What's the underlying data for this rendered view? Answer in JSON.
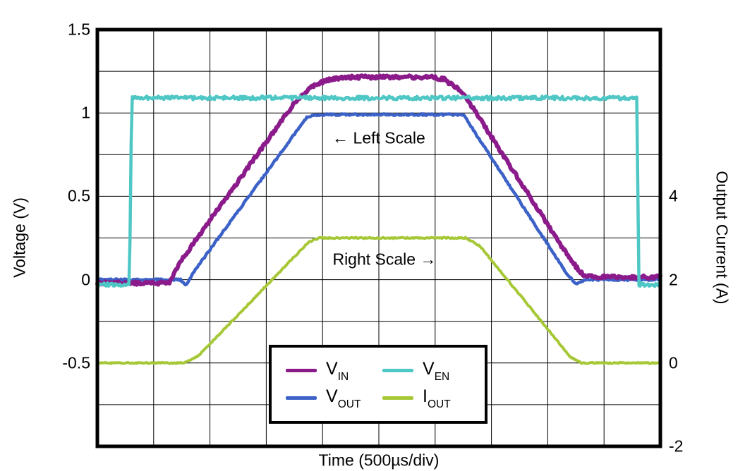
{
  "figure": {
    "background": "#ffffff"
  },
  "chart_data": {
    "type": "line",
    "title": "",
    "xlabel": "Time (500µs/div)",
    "x_divisions": 10,
    "grid": true,
    "left_axis": {
      "label": "Voltage (V)",
      "range": [
        -1.0,
        1.5
      ],
      "ticks": [
        {
          "value": 1.5,
          "label": "1.5"
        },
        {
          "value": 1.0,
          "label": "1"
        },
        {
          "value": 0.5,
          "label": "0.5"
        },
        {
          "value": 0.0,
          "label": "0"
        },
        {
          "value": -0.5,
          "label": "-0.5"
        }
      ]
    },
    "right_axis": {
      "label": "Output Current (A)",
      "range": [
        -2,
        8
      ],
      "ticks": [
        {
          "value": 4,
          "label": "4"
        },
        {
          "value": 2,
          "label": "2"
        },
        {
          "value": 0,
          "label": "0"
        },
        {
          "value": -2,
          "label": "-2"
        }
      ]
    },
    "series": [
      {
        "id": "iout",
        "label_main": "I",
        "label_sub": "OUT",
        "color": "#a6c836",
        "width": 4,
        "scale": "right",
        "noise": 0.015,
        "seed": 4,
        "points": [
          [
            0,
            0
          ],
          [
            1.55,
            0
          ],
          [
            1.8,
            0.18
          ],
          [
            3.75,
            2.9
          ],
          [
            3.95,
            3.0
          ],
          [
            6.55,
            3.0
          ],
          [
            6.8,
            2.8
          ],
          [
            8.4,
            0.15
          ],
          [
            8.6,
            0
          ],
          [
            10,
            0
          ]
        ]
      },
      {
        "id": "vout",
        "label_main": "V",
        "label_sub": "OUT",
        "color": "#3c62c8",
        "width": 4.5,
        "scale": "left",
        "noise": 0.005,
        "seed": 3,
        "points": [
          [
            0,
            0
          ],
          [
            1.48,
            0
          ],
          [
            1.57,
            -0.035
          ],
          [
            1.72,
            0.05
          ],
          [
            3.72,
            0.975
          ],
          [
            3.95,
            0.99
          ],
          [
            6.5,
            0.99
          ],
          [
            8.35,
            0.03
          ],
          [
            8.5,
            -0.025
          ],
          [
            8.7,
            0
          ],
          [
            10,
            0
          ]
        ]
      },
      {
        "id": "vin",
        "label_main": "V",
        "label_sub": "IN",
        "color": "#8b1b8b",
        "width": 6,
        "scale": "left",
        "noise": 0.01,
        "seed": 1,
        "points": [
          [
            0,
            -0.02
          ],
          [
            1.28,
            -0.02
          ],
          [
            1.5,
            0.12
          ],
          [
            3.5,
            1.06
          ],
          [
            3.8,
            1.155
          ],
          [
            4.1,
            1.2
          ],
          [
            4.4,
            1.215
          ],
          [
            5.9,
            1.215
          ],
          [
            6.15,
            1.205
          ],
          [
            6.5,
            1.12
          ],
          [
            8.4,
            0.12
          ],
          [
            8.62,
            0.03
          ],
          [
            8.8,
            0.015
          ],
          [
            10,
            0.015
          ]
        ]
      },
      {
        "id": "ven",
        "label_main": "V",
        "label_sub": "EN",
        "color": "#4fc7c5",
        "width": 4.5,
        "scale": "left",
        "noise": 0.011,
        "seed": 2,
        "points": [
          [
            0,
            -0.03
          ],
          [
            0.57,
            -0.03
          ],
          [
            0.61,
            1.09
          ],
          [
            9.58,
            1.09
          ],
          [
            9.62,
            -0.03
          ],
          [
            10,
            -0.03
          ]
        ]
      }
    ],
    "annotations": [
      {
        "id": "left-scale-note",
        "text": "← Left Scale",
        "x_div": 5.0,
        "y_value": 0.85
      },
      {
        "id": "right-scale-note",
        "text": "Right Scale →",
        "x_div": 5.1,
        "y_value": 0.12
      }
    ],
    "legend": {
      "rows": [
        [
          "vin",
          "ven"
        ],
        [
          "vout",
          "iout"
        ]
      ]
    }
  }
}
